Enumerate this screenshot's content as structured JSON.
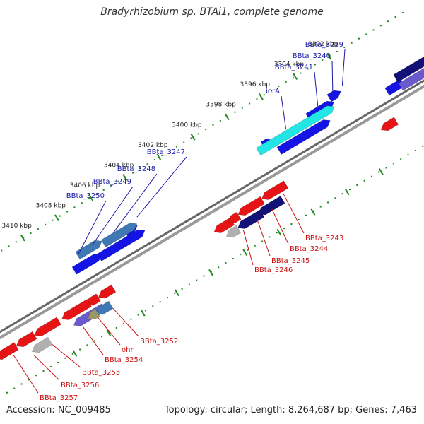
{
  "title": "Bradyrhizobium sp. BTAi1, complete genome",
  "footer": {
    "accession": "Accession: NC_009485",
    "summary": "Topology: circular; Length: 8,264,687 bp; Genes: 7,463"
  },
  "colors": {
    "backbone": "#888888",
    "tick": "#228822",
    "forward_gene": "#1414e6",
    "reverse_gene": "#e61414",
    "highlight_cyan": "#22e6e6",
    "steel_blue": "#3f79b5",
    "navy": "#111177",
    "lavender": "#6a5acd",
    "grey": "#b0b0b0",
    "olive": "#999966",
    "forward_label": "#1a1aa8",
    "reverse_label": "#cc1111"
  },
  "ticks": [
    "3392 kbp",
    "3394 kbp",
    "3396 kbp",
    "3398 kbp",
    "3400 kbp",
    "3402 kbp",
    "3404 kbp",
    "3406 kbp",
    "3408 kbp",
    "3410 kbp"
  ],
  "forward_labels": [
    "BBta_3239",
    "BBta_3240",
    "BBta_3241",
    "iorA",
    "BBta_3247",
    "BBta_3248",
    "BBta_3249",
    "BBta_3250"
  ],
  "reverse_labels": [
    "BBta_3243",
    "BBta_3244",
    "BBta_3245",
    "BBta_3246",
    "BBta_3252",
    "ohr",
    "BBta_3254",
    "BBta_3255",
    "BBta_3256",
    "BBta_3257"
  ]
}
